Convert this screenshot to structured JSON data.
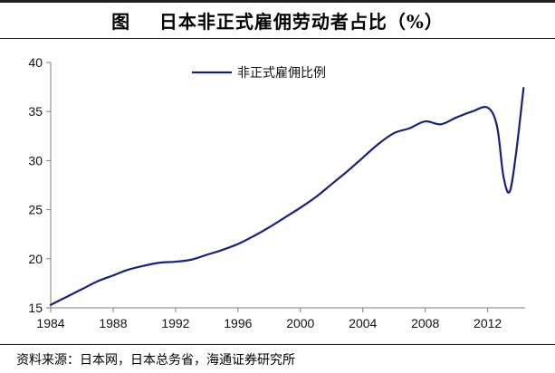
{
  "header": {
    "title": "图    日本非正式雇佣劳动者占比（%）"
  },
  "footer": {
    "source": "资料来源：日本网，日本总务省，海通证券研究所"
  },
  "colors": {
    "series": "#1b1f7a",
    "axis": "#7f7f7f",
    "rule": "#1f1f1f"
  },
  "chart_data": {
    "type": "line",
    "title": "",
    "xlabel": "",
    "ylabel": "",
    "xlim": [
      1984,
      2014.4
    ],
    "ylim": [
      15,
      40
    ],
    "x_ticks": [
      "1984",
      "1988",
      "1992",
      "1996",
      "2000",
      "2004",
      "2008",
      "2012"
    ],
    "x_tick_values": [
      1984,
      1988,
      1992,
      1996,
      2000,
      2004,
      2008,
      2012
    ],
    "y_ticks": [
      "15",
      "20",
      "25",
      "30",
      "35",
      "40"
    ],
    "y_tick_values": [
      15,
      20,
      25,
      30,
      35,
      40
    ],
    "grid": false,
    "legend_position": "top-center",
    "series": [
      {
        "name": "非正式雇佣比例",
        "x": [
          1984,
          1985,
          1986,
          1987,
          1988,
          1989,
          1990,
          1991,
          1992,
          1993,
          1994,
          1995,
          1996,
          1997,
          1998,
          1999,
          2000,
          2001,
          2002,
          2003,
          2004,
          2005,
          2006,
          2007,
          2008,
          2009,
          2010,
          2011,
          2012,
          2012.6,
          2013,
          2013.4,
          2013.8,
          2014.3
        ],
        "y": [
          15.3,
          16.1,
          16.9,
          17.7,
          18.3,
          18.9,
          19.3,
          19.6,
          19.7,
          19.9,
          20.4,
          20.9,
          21.5,
          22.3,
          23.2,
          24.2,
          25.2,
          26.3,
          27.6,
          28.9,
          30.3,
          31.7,
          32.8,
          33.3,
          34.0,
          33.7,
          34.4,
          35.0,
          35.4,
          33.5,
          28.5,
          26.8,
          30.5,
          37.4
        ]
      }
    ]
  }
}
